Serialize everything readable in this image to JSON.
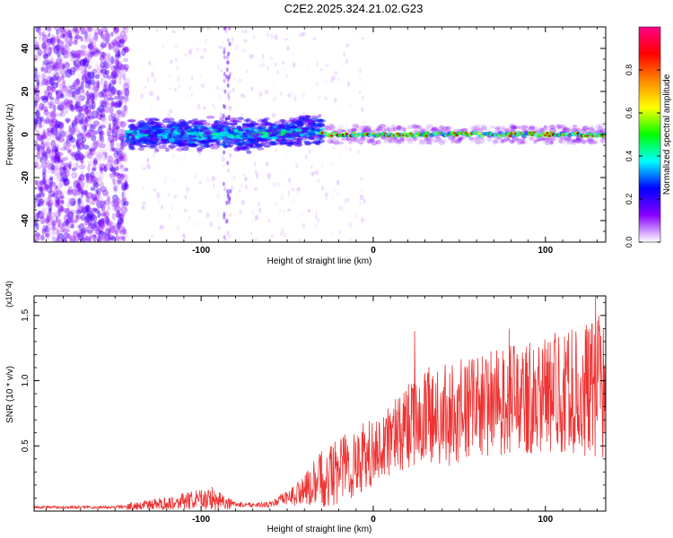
{
  "title": "C2E2.2025.324.21.02.G23",
  "chart_data": [
    {
      "type": "heatmap",
      "name": "spectrogram",
      "xlabel": "Height of straight line (km)",
      "ylabel": "Frequency (Hz)",
      "xlim": [
        -197,
        135
      ],
      "ylim": [
        -50,
        50
      ],
      "xticks": [
        -100,
        0,
        100
      ],
      "xtick_labels": [
        "-100",
        "0",
        "100"
      ],
      "yticks": [
        -40,
        -20,
        0,
        20,
        40
      ],
      "ytick_labels": [
        "-40",
        "-20",
        "0",
        "20",
        "40"
      ],
      "description_segments": [
        {
          "x_range": [
            -197,
            -143
          ],
          "pattern": "scattered low-amplitude noise across all frequencies"
        },
        {
          "x_range": [
            -143,
            -30
          ],
          "pattern": "broad band around 0 Hz (width ~10 Hz), amplitude 0.2-0.5"
        },
        {
          "x_range": [
            -30,
            135
          ],
          "pattern": "narrow band near 0 Hz, amplitude 0.4-1.0"
        }
      ],
      "colorbar": {
        "label": "Normalized spectral amplitude",
        "range": [
          0,
          1
        ],
        "ticks": [
          0.0,
          0.2,
          0.4,
          0.6,
          0.8
        ],
        "tick_labels": [
          "0.0",
          "0.2",
          "0.4",
          "0.6",
          "0.8"
        ],
        "colors": [
          "#ffffff",
          "#8800ff",
          "#0000ff",
          "#00ffff",
          "#00ff00",
          "#ffff00",
          "#ff8800",
          "#ff0000",
          "#ff0088"
        ]
      }
    },
    {
      "type": "line",
      "name": "snr",
      "xlabel": "Height of straight line (km)",
      "ylabel": "SNR (10 * v/v)",
      "scale_label": "(x10^4)",
      "xlim": [
        -197,
        135
      ],
      "ylim": [
        0,
        1.65
      ],
      "xticks": [
        -100,
        0,
        100
      ],
      "xtick_labels": [
        "-100",
        "0",
        "100"
      ],
      "yticks": [
        0.5,
        1.0,
        1.5
      ],
      "ytick_labels": [
        "0.5",
        "1.0",
        "1.5"
      ],
      "line_color": "#ee3333",
      "envelope_x": [
        -197,
        -150,
        -140,
        -120,
        -100,
        -90,
        -85,
        -80,
        -60,
        -50,
        -40,
        -30,
        -20,
        -10,
        0,
        10,
        20,
        30,
        40,
        60,
        80,
        100,
        120,
        135
      ],
      "envelope_base": [
        0.03,
        0.03,
        0.04,
        0.06,
        0.09,
        0.1,
        0.06,
        0.05,
        0.05,
        0.1,
        0.16,
        0.25,
        0.32,
        0.38,
        0.45,
        0.55,
        0.65,
        0.72,
        0.72,
        0.8,
        0.85,
        0.9,
        0.92,
        0.95
      ],
      "envelope_amp": [
        0.01,
        0.01,
        0.03,
        0.05,
        0.08,
        0.1,
        0.05,
        0.02,
        0.02,
        0.06,
        0.12,
        0.22,
        0.28,
        0.3,
        0.25,
        0.28,
        0.32,
        0.38,
        0.4,
        0.4,
        0.42,
        0.45,
        0.5,
        0.55
      ],
      "peaks": [
        {
          "x": 24,
          "y": 1.38
        },
        {
          "x": 79,
          "y": 1.4
        },
        {
          "x": 129,
          "y": 1.65
        },
        {
          "x": 131,
          "y": 1.5
        }
      ]
    }
  ]
}
